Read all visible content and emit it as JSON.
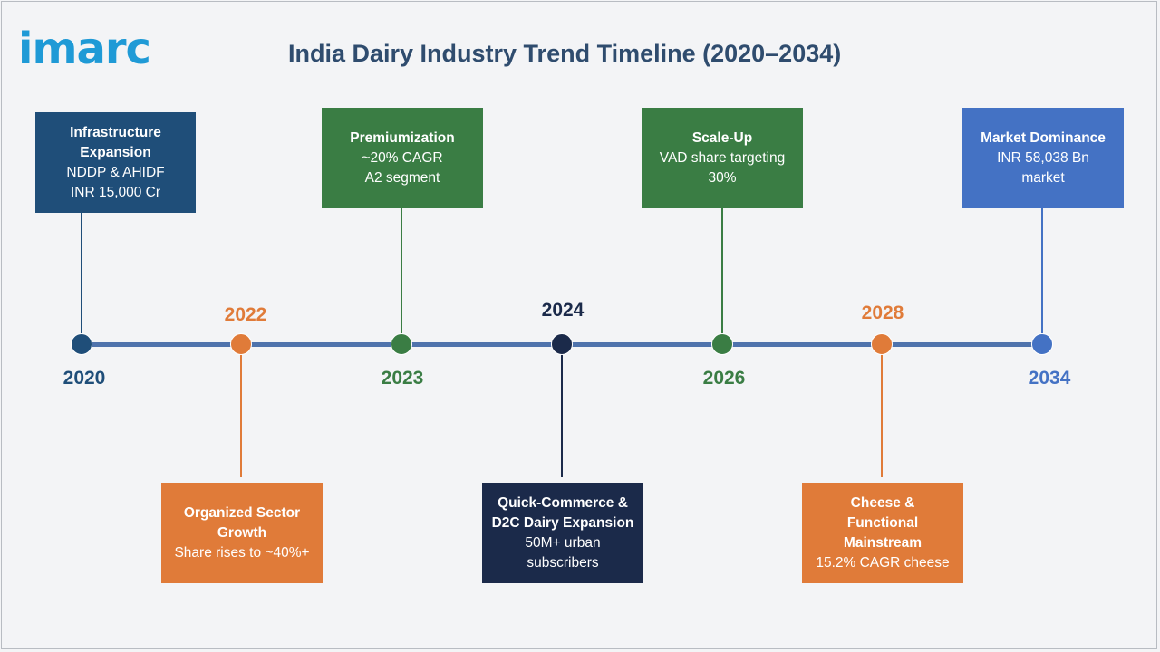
{
  "logo": "imarc",
  "title": "India Dairy  Industry Trend Timeline (2020–2034)",
  "colors": {
    "navy": "#1f4e79",
    "orange": "#e07b39",
    "green": "#3a7d44",
    "darknavy": "#1b2a4a",
    "blue": "#4472c4",
    "axis": "#4f73ac"
  },
  "milestones": [
    {
      "year": "2020",
      "heading": "Infrastructure Expansion",
      "lines": [
        "NDDP & AHIDF",
        "INR 15,000 Cr"
      ]
    },
    {
      "year": "2022",
      "heading": "Organized Sector Growth",
      "lines": [
        "Share rises to ~40%+"
      ]
    },
    {
      "year": "2023",
      "heading": "Premiumization",
      "lines": [
        "~20% CAGR",
        "A2 segment"
      ]
    },
    {
      "year": "2024",
      "heading": "Quick-Commerce & D2C Dairy Expansion",
      "lines": [
        "50M+ urban subscribers"
      ]
    },
    {
      "year": "2026",
      "heading": "Scale-Up",
      "lines": [
        "VAD share targeting 30%"
      ]
    },
    {
      "year": "2028",
      "heading": "Cheese & Functional Mainstream",
      "lines": [
        "15.2% CAGR cheese"
      ]
    },
    {
      "year": "2034",
      "heading": "Market Dominance",
      "lines": [
        "INR 58,038 Bn market"
      ]
    }
  ]
}
